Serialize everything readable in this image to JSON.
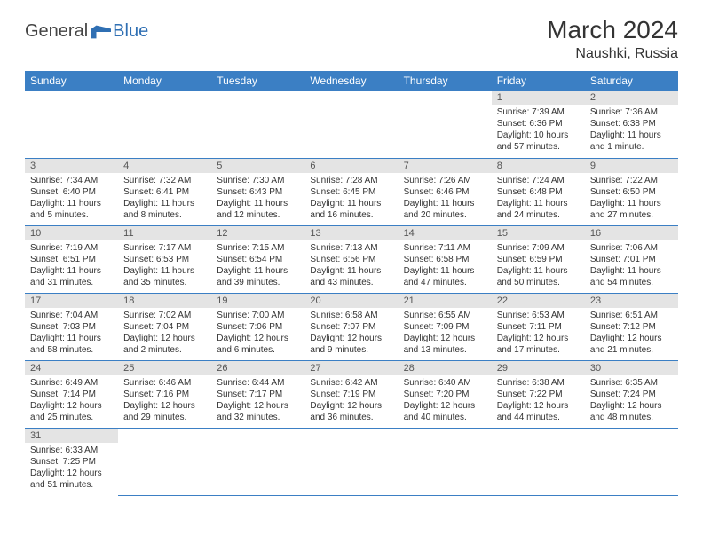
{
  "logo": {
    "text1": "General",
    "text2": "Blue"
  },
  "title": "March 2024",
  "location": "Naushki, Russia",
  "colors": {
    "header_bg": "#3b7fc4",
    "header_text": "#ffffff",
    "daynum_bg": "#e4e4e4",
    "body_text": "#333333",
    "row_border": "#3b7fc4",
    "logo_blue": "#2f6fb3"
  },
  "dayNames": [
    "Sunday",
    "Monday",
    "Tuesday",
    "Wednesday",
    "Thursday",
    "Friday",
    "Saturday"
  ],
  "weeks": [
    [
      null,
      null,
      null,
      null,
      null,
      {
        "n": "1",
        "sunrise": "Sunrise: 7:39 AM",
        "sunset": "Sunset: 6:36 PM",
        "daylight": "Daylight: 10 hours and 57 minutes."
      },
      {
        "n": "2",
        "sunrise": "Sunrise: 7:36 AM",
        "sunset": "Sunset: 6:38 PM",
        "daylight": "Daylight: 11 hours and 1 minute."
      }
    ],
    [
      {
        "n": "3",
        "sunrise": "Sunrise: 7:34 AM",
        "sunset": "Sunset: 6:40 PM",
        "daylight": "Daylight: 11 hours and 5 minutes."
      },
      {
        "n": "4",
        "sunrise": "Sunrise: 7:32 AM",
        "sunset": "Sunset: 6:41 PM",
        "daylight": "Daylight: 11 hours and 8 minutes."
      },
      {
        "n": "5",
        "sunrise": "Sunrise: 7:30 AM",
        "sunset": "Sunset: 6:43 PM",
        "daylight": "Daylight: 11 hours and 12 minutes."
      },
      {
        "n": "6",
        "sunrise": "Sunrise: 7:28 AM",
        "sunset": "Sunset: 6:45 PM",
        "daylight": "Daylight: 11 hours and 16 minutes."
      },
      {
        "n": "7",
        "sunrise": "Sunrise: 7:26 AM",
        "sunset": "Sunset: 6:46 PM",
        "daylight": "Daylight: 11 hours and 20 minutes."
      },
      {
        "n": "8",
        "sunrise": "Sunrise: 7:24 AM",
        "sunset": "Sunset: 6:48 PM",
        "daylight": "Daylight: 11 hours and 24 minutes."
      },
      {
        "n": "9",
        "sunrise": "Sunrise: 7:22 AM",
        "sunset": "Sunset: 6:50 PM",
        "daylight": "Daylight: 11 hours and 27 minutes."
      }
    ],
    [
      {
        "n": "10",
        "sunrise": "Sunrise: 7:19 AM",
        "sunset": "Sunset: 6:51 PM",
        "daylight": "Daylight: 11 hours and 31 minutes."
      },
      {
        "n": "11",
        "sunrise": "Sunrise: 7:17 AM",
        "sunset": "Sunset: 6:53 PM",
        "daylight": "Daylight: 11 hours and 35 minutes."
      },
      {
        "n": "12",
        "sunrise": "Sunrise: 7:15 AM",
        "sunset": "Sunset: 6:54 PM",
        "daylight": "Daylight: 11 hours and 39 minutes."
      },
      {
        "n": "13",
        "sunrise": "Sunrise: 7:13 AM",
        "sunset": "Sunset: 6:56 PM",
        "daylight": "Daylight: 11 hours and 43 minutes."
      },
      {
        "n": "14",
        "sunrise": "Sunrise: 7:11 AM",
        "sunset": "Sunset: 6:58 PM",
        "daylight": "Daylight: 11 hours and 47 minutes."
      },
      {
        "n": "15",
        "sunrise": "Sunrise: 7:09 AM",
        "sunset": "Sunset: 6:59 PM",
        "daylight": "Daylight: 11 hours and 50 minutes."
      },
      {
        "n": "16",
        "sunrise": "Sunrise: 7:06 AM",
        "sunset": "Sunset: 7:01 PM",
        "daylight": "Daylight: 11 hours and 54 minutes."
      }
    ],
    [
      {
        "n": "17",
        "sunrise": "Sunrise: 7:04 AM",
        "sunset": "Sunset: 7:03 PM",
        "daylight": "Daylight: 11 hours and 58 minutes."
      },
      {
        "n": "18",
        "sunrise": "Sunrise: 7:02 AM",
        "sunset": "Sunset: 7:04 PM",
        "daylight": "Daylight: 12 hours and 2 minutes."
      },
      {
        "n": "19",
        "sunrise": "Sunrise: 7:00 AM",
        "sunset": "Sunset: 7:06 PM",
        "daylight": "Daylight: 12 hours and 6 minutes."
      },
      {
        "n": "20",
        "sunrise": "Sunrise: 6:58 AM",
        "sunset": "Sunset: 7:07 PM",
        "daylight": "Daylight: 12 hours and 9 minutes."
      },
      {
        "n": "21",
        "sunrise": "Sunrise: 6:55 AM",
        "sunset": "Sunset: 7:09 PM",
        "daylight": "Daylight: 12 hours and 13 minutes."
      },
      {
        "n": "22",
        "sunrise": "Sunrise: 6:53 AM",
        "sunset": "Sunset: 7:11 PM",
        "daylight": "Daylight: 12 hours and 17 minutes."
      },
      {
        "n": "23",
        "sunrise": "Sunrise: 6:51 AM",
        "sunset": "Sunset: 7:12 PM",
        "daylight": "Daylight: 12 hours and 21 minutes."
      }
    ],
    [
      {
        "n": "24",
        "sunrise": "Sunrise: 6:49 AM",
        "sunset": "Sunset: 7:14 PM",
        "daylight": "Daylight: 12 hours and 25 minutes."
      },
      {
        "n": "25",
        "sunrise": "Sunrise: 6:46 AM",
        "sunset": "Sunset: 7:16 PM",
        "daylight": "Daylight: 12 hours and 29 minutes."
      },
      {
        "n": "26",
        "sunrise": "Sunrise: 6:44 AM",
        "sunset": "Sunset: 7:17 PM",
        "daylight": "Daylight: 12 hours and 32 minutes."
      },
      {
        "n": "27",
        "sunrise": "Sunrise: 6:42 AM",
        "sunset": "Sunset: 7:19 PM",
        "daylight": "Daylight: 12 hours and 36 minutes."
      },
      {
        "n": "28",
        "sunrise": "Sunrise: 6:40 AM",
        "sunset": "Sunset: 7:20 PM",
        "daylight": "Daylight: 12 hours and 40 minutes."
      },
      {
        "n": "29",
        "sunrise": "Sunrise: 6:38 AM",
        "sunset": "Sunset: 7:22 PM",
        "daylight": "Daylight: 12 hours and 44 minutes."
      },
      {
        "n": "30",
        "sunrise": "Sunrise: 6:35 AM",
        "sunset": "Sunset: 7:24 PM",
        "daylight": "Daylight: 12 hours and 48 minutes."
      }
    ],
    [
      {
        "n": "31",
        "sunrise": "Sunrise: 6:33 AM",
        "sunset": "Sunset: 7:25 PM",
        "daylight": "Daylight: 12 hours and 51 minutes."
      },
      null,
      null,
      null,
      null,
      null,
      null
    ]
  ]
}
